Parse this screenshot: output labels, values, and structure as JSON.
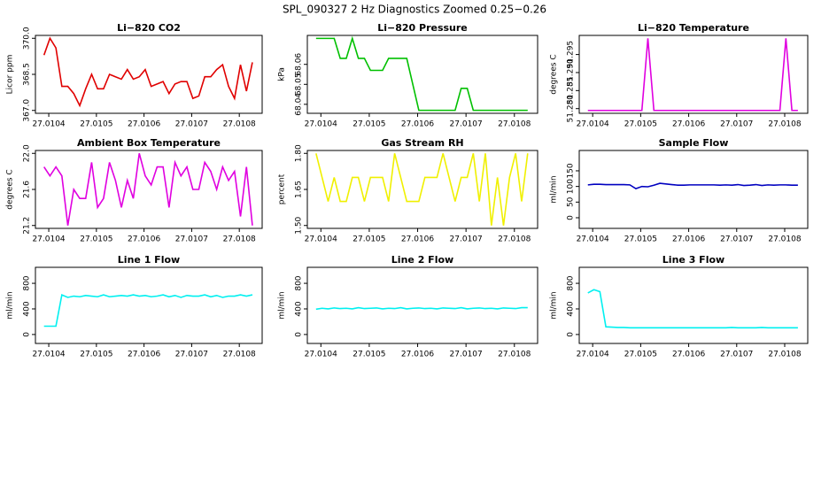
{
  "title": "SPL_090327  2 Hz Diagnostics Zoomed 0.25−0.26",
  "chart_data": [
    {
      "type": "line",
      "title": "Li−820 CO2",
      "ylabel": "Licor ppm",
      "color": "#e00000",
      "x": [
        27.01039,
        27.0104025,
        27.010415,
        27.0104275,
        27.01044,
        27.0104525,
        27.010465,
        27.0104775,
        27.01049,
        27.0105025,
        27.010515,
        27.0105275,
        27.01054,
        27.0105525,
        27.010565,
        27.0105775,
        27.01059,
        27.0106025,
        27.010615,
        27.0106275,
        27.01064,
        27.0106525,
        27.010665,
        27.0106775,
        27.01069,
        27.0107025,
        27.010715,
        27.0107275,
        27.01074,
        27.0107525,
        27.010765,
        27.0107775,
        27.01079,
        27.0108025,
        27.010815,
        27.0108275
      ],
      "values": [
        369.3,
        370.0,
        369.6,
        368.0,
        368.0,
        367.7,
        367.2,
        367.9,
        368.5,
        367.9,
        367.9,
        368.5,
        368.4,
        368.3,
        368.7,
        368.3,
        368.4,
        368.7,
        368.0,
        368.1,
        368.2,
        367.7,
        368.1,
        368.2,
        368.2,
        367.5,
        367.6,
        368.4,
        368.4,
        368.7,
        368.9,
        368.0,
        367.5,
        368.9,
        367.8,
        369.0
      ],
      "xlim": [
        27.010372,
        27.010848
      ],
      "xticks": [
        27.0104,
        27.0105,
        27.0106,
        27.0107,
        27.0108
      ],
      "ylim": [
        366.88,
        370.12
      ],
      "yticks": [
        {
          "value": 367,
          "label": "367.0"
        },
        {
          "value": 368.5,
          "label": "368.5"
        },
        {
          "value": 370,
          "label": "370.0"
        }
      ]
    },
    {
      "type": "line",
      "title": "Li−820 Pressure",
      "ylabel": "kPa",
      "color": "#00c000",
      "x": [
        27.01039,
        27.0104025,
        27.010415,
        27.0104275,
        27.01044,
        27.0104525,
        27.010465,
        27.0104775,
        27.01049,
        27.0105025,
        27.010515,
        27.0105275,
        27.01054,
        27.0105525,
        27.010565,
        27.0105775,
        27.01059,
        27.0106025,
        27.010615,
        27.0106275,
        27.01064,
        27.0106525,
        27.010665,
        27.0106775,
        27.01069,
        27.0107025,
        27.010715,
        27.0107275,
        27.01074,
        27.0107525,
        27.010765,
        27.0107775,
        27.01079,
        27.0108025,
        27.010815,
        27.0108275
      ],
      "values": [
        68.073,
        68.073,
        68.073,
        68.073,
        68.063,
        68.063,
        68.073,
        68.063,
        68.063,
        68.057,
        68.057,
        68.057,
        68.063,
        68.063,
        68.063,
        68.063,
        68.05,
        68.037,
        68.037,
        68.037,
        68.037,
        68.037,
        68.037,
        68.037,
        68.048,
        68.048,
        68.037,
        68.037,
        68.037,
        68.037,
        68.037,
        68.037,
        68.037,
        68.037,
        68.037,
        68.037
      ],
      "xlim": [
        27.010372,
        27.010848
      ],
      "xticks": [
        27.0104,
        27.0105,
        27.0106,
        27.0107,
        27.0108
      ],
      "ylim": [
        68.0355,
        68.0745
      ],
      "yticks": [
        68.04,
        68.05,
        68.06
      ]
    },
    {
      "type": "line",
      "title": "Li−820 Temperature",
      "ylabel": "degrees C",
      "color": "#e000e0",
      "x": [
        27.01039,
        27.0104025,
        27.010415,
        27.0104275,
        27.01044,
        27.0104525,
        27.010465,
        27.0104775,
        27.01049,
        27.0105025,
        27.010515,
        27.0105275,
        27.01054,
        27.0105525,
        27.010565,
        27.0105775,
        27.01059,
        27.0106025,
        27.010615,
        27.0106275,
        27.01064,
        27.0106525,
        27.010665,
        27.0106775,
        27.01069,
        27.0107025,
        27.010715,
        27.0107275,
        27.01074,
        27.0107525,
        27.010765,
        27.0107775,
        27.01079,
        27.0108025,
        27.010815,
        27.0108275
      ],
      "values": [
        51.2795,
        51.2795,
        51.2795,
        51.2795,
        51.2795,
        51.2795,
        51.2795,
        51.2795,
        51.2795,
        51.2795,
        51.2995,
        51.2795,
        51.2795,
        51.2795,
        51.2795,
        51.2795,
        51.2795,
        51.2795,
        51.2795,
        51.2795,
        51.2795,
        51.2795,
        51.2795,
        51.2795,
        51.2795,
        51.2795,
        51.2795,
        51.2795,
        51.2795,
        51.2795,
        51.2795,
        51.2795,
        51.2795,
        51.2995,
        51.2795,
        51.2795
      ],
      "xlim": [
        27.010372,
        27.010848
      ],
      "xticks": [
        27.0104,
        27.0105,
        27.0106,
        27.0107,
        27.0108
      ],
      "ylim": [
        51.2787,
        51.3003
      ],
      "yticks": [
        {
          "value": 51.28,
          "label": "51.280"
        },
        {
          "value": 51.285,
          "label": "51.285"
        },
        {
          "value": 51.29,
          "label": "51.290"
        },
        {
          "value": 51.295,
          "label": "51.295"
        }
      ]
    },
    {
      "type": "line",
      "title": "Ambient Box Temperature",
      "ylabel": "degrees C",
      "color": "#e000e0",
      "x": [
        27.01039,
        27.0104025,
        27.010415,
        27.0104275,
        27.01044,
        27.0104525,
        27.010465,
        27.0104775,
        27.01049,
        27.0105025,
        27.010515,
        27.0105275,
        27.01054,
        27.0105525,
        27.010565,
        27.0105775,
        27.01059,
        27.0106025,
        27.010615,
        27.0106275,
        27.01064,
        27.0106525,
        27.010665,
        27.0106775,
        27.01069,
        27.0107025,
        27.010715,
        27.0107275,
        27.01074,
        27.0107525,
        27.010765,
        27.0107775,
        27.01079,
        27.0108025,
        27.010815,
        27.0108275
      ],
      "values": [
        21.85,
        21.75,
        21.85,
        21.75,
        21.2,
        21.6,
        21.5,
        21.5,
        21.9,
        21.4,
        21.5,
        21.9,
        21.7,
        21.4,
        21.7,
        21.5,
        22.0,
        21.75,
        21.65,
        21.85,
        21.85,
        21.4,
        21.9,
        21.75,
        21.85,
        21.6,
        21.6,
        21.9,
        21.8,
        21.6,
        21.85,
        21.7,
        21.8,
        21.3,
        21.85,
        21.2
      ],
      "xlim": [
        27.010372,
        27.010848
      ],
      "xticks": [
        27.0104,
        27.0105,
        27.0106,
        27.0107,
        27.0108
      ],
      "ylim": [
        21.168,
        22.032
      ],
      "yticks": [
        21.2,
        21.6,
        {
          "value": 22,
          "label": "22.0"
        }
      ]
    },
    {
      "type": "line",
      "title": "Gas Stream RH",
      "ylabel": "percent",
      "color": "#f0f000",
      "x": [
        27.01039,
        27.0104025,
        27.010415,
        27.0104275,
        27.01044,
        27.0104525,
        27.010465,
        27.0104775,
        27.01049,
        27.0105025,
        27.010515,
        27.0105275,
        27.01054,
        27.0105525,
        27.010565,
        27.0105775,
        27.01059,
        27.0106025,
        27.010615,
        27.0106275,
        27.01064,
        27.0106525,
        27.010665,
        27.0106775,
        27.01069,
        27.0107025,
        27.010715,
        27.0107275,
        27.01074,
        27.0107525,
        27.010765,
        27.0107775,
        27.01079,
        27.0108025,
        27.010815,
        27.0108275
      ],
      "values": [
        1.8,
        1.7,
        1.6,
        1.7,
        1.6,
        1.6,
        1.7,
        1.7,
        1.6,
        1.7,
        1.7,
        1.7,
        1.6,
        1.8,
        1.7,
        1.6,
        1.6,
        1.6,
        1.7,
        1.7,
        1.7,
        1.8,
        1.7,
        1.6,
        1.7,
        1.7,
        1.8,
        1.6,
        1.8,
        1.5,
        1.7,
        1.5,
        1.7,
        1.8,
        1.6,
        1.8
      ],
      "xlim": [
        27.010372,
        27.010848
      ],
      "xticks": [
        27.0104,
        27.0105,
        27.0106,
        27.0107,
        27.0108
      ],
      "ylim": [
        1.488,
        1.812
      ],
      "yticks": [
        {
          "value": 1.5,
          "label": "1.50"
        },
        1.65,
        {
          "value": 1.8,
          "label": "1.80"
        }
      ]
    },
    {
      "type": "line",
      "title": "Sample Flow",
      "ylabel": "ml/min",
      "color": "#0000c0",
      "x": [
        27.01039,
        27.0104025,
        27.010415,
        27.0104275,
        27.01044,
        27.0104525,
        27.010465,
        27.0104775,
        27.01049,
        27.0105025,
        27.010515,
        27.0105275,
        27.01054,
        27.0105525,
        27.010565,
        27.0105775,
        27.01059,
        27.0106025,
        27.010615,
        27.0106275,
        27.01064,
        27.0106525,
        27.010665,
        27.0106775,
        27.01069,
        27.0107025,
        27.010715,
        27.0107275,
        27.01074,
        27.0107525,
        27.010765,
        27.0107775,
        27.01079,
        27.0108025,
        27.010815,
        27.0108275
      ],
      "values": [
        105,
        107,
        107,
        106,
        106,
        106,
        106,
        105,
        93,
        100,
        99,
        104,
        110,
        108,
        106,
        104,
        104,
        105,
        105,
        105,
        105,
        105,
        104,
        105,
        104,
        106,
        103,
        104,
        106,
        103,
        105,
        104,
        105,
        105,
        104,
        104
      ],
      "xlim": [
        27.010372,
        27.010848
      ],
      "xticks": [
        27.0104,
        27.0105,
        27.0106,
        27.0107,
        27.0108
      ],
      "ylim": [
        -34,
        215
      ],
      "yticks": [
        0,
        50,
        100,
        150
      ]
    },
    {
      "type": "line",
      "title": "Line 1 Flow",
      "ylabel": "ml/min",
      "color": "#00f0f0",
      "x": [
        27.01039,
        27.0104025,
        27.010415,
        27.0104275,
        27.01044,
        27.0104525,
        27.010465,
        27.0104775,
        27.01049,
        27.0105025,
        27.010515,
        27.0105275,
        27.01054,
        27.0105525,
        27.010565,
        27.0105775,
        27.01059,
        27.0106025,
        27.010615,
        27.0106275,
        27.01064,
        27.0106525,
        27.010665,
        27.0106775,
        27.01069,
        27.0107025,
        27.010715,
        27.0107275,
        27.01074,
        27.0107525,
        27.010765,
        27.0107775,
        27.01079,
        27.0108025,
        27.010815,
        27.0108275
      ],
      "values": [
        130,
        130,
        130,
        620,
        580,
        600,
        590,
        610,
        600,
        590,
        620,
        590,
        600,
        610,
        600,
        620,
        600,
        610,
        590,
        600,
        620,
        590,
        610,
        580,
        610,
        600,
        600,
        620,
        590,
        610,
        580,
        600,
        600,
        620,
        600,
        620
      ],
      "xlim": [
        27.010372,
        27.010848
      ],
      "xticks": [
        27.0104,
        27.0105,
        27.0106,
        27.0107,
        27.0108
      ],
      "ylim": [
        -140,
        1050
      ],
      "yticks": [
        0,
        400,
        800
      ]
    },
    {
      "type": "line",
      "title": "Line 2 Flow",
      "ylabel": "ml/min",
      "color": "#00f0f0",
      "x": [
        27.01039,
        27.0104025,
        27.010415,
        27.0104275,
        27.01044,
        27.0104525,
        27.010465,
        27.0104775,
        27.01049,
        27.0105025,
        27.010515,
        27.0105275,
        27.01054,
        27.0105525,
        27.010565,
        27.0105775,
        27.01059,
        27.0106025,
        27.010615,
        27.0106275,
        27.01064,
        27.0106525,
        27.010665,
        27.0106775,
        27.01069,
        27.0107025,
        27.010715,
        27.0107275,
        27.01074,
        27.0107525,
        27.010765,
        27.0107775,
        27.01079,
        27.0108025,
        27.010815,
        27.0108275
      ],
      "values": [
        395,
        410,
        400,
        415,
        405,
        410,
        400,
        420,
        405,
        410,
        415,
        400,
        410,
        405,
        420,
        400,
        410,
        415,
        405,
        410,
        400,
        415,
        410,
        405,
        420,
        400,
        410,
        415,
        405,
        410,
        400,
        415,
        410,
        405,
        420,
        420
      ],
      "xlim": [
        27.010372,
        27.010848
      ],
      "xticks": [
        27.0104,
        27.0105,
        27.0106,
        27.0107,
        27.0108
      ],
      "ylim": [
        -140,
        1050
      ],
      "yticks": [
        0,
        400,
        800
      ]
    },
    {
      "type": "line",
      "title": "Line 3 Flow",
      "ylabel": "ml/min",
      "color": "#00f0f0",
      "x": [
        27.01039,
        27.0104025,
        27.010415,
        27.0104275,
        27.01044,
        27.0104525,
        27.010465,
        27.0104775,
        27.01049,
        27.0105025,
        27.010515,
        27.0105275,
        27.01054,
        27.0105525,
        27.010565,
        27.0105775,
        27.01059,
        27.0106025,
        27.010615,
        27.0106275,
        27.01064,
        27.0106525,
        27.010665,
        27.0106775,
        27.01069,
        27.0107025,
        27.010715,
        27.0107275,
        27.01074,
        27.0107525,
        27.010765,
        27.0107775,
        27.01079,
        27.0108025,
        27.010815,
        27.0108275
      ],
      "values": [
        650,
        700,
        670,
        120,
        115,
        110,
        110,
        105,
        105,
        105,
        105,
        105,
        105,
        105,
        105,
        105,
        105,
        105,
        105,
        105,
        105,
        105,
        105,
        105,
        110,
        105,
        105,
        105,
        105,
        110,
        105,
        105,
        105,
        105,
        105,
        105
      ],
      "xlim": [
        27.010372,
        27.010848
      ],
      "xticks": [
        27.0104,
        27.0105,
        27.0106,
        27.0107,
        27.0108
      ],
      "ylim": [
        -140,
        1050
      ],
      "yticks": [
        0,
        400,
        800
      ]
    }
  ]
}
